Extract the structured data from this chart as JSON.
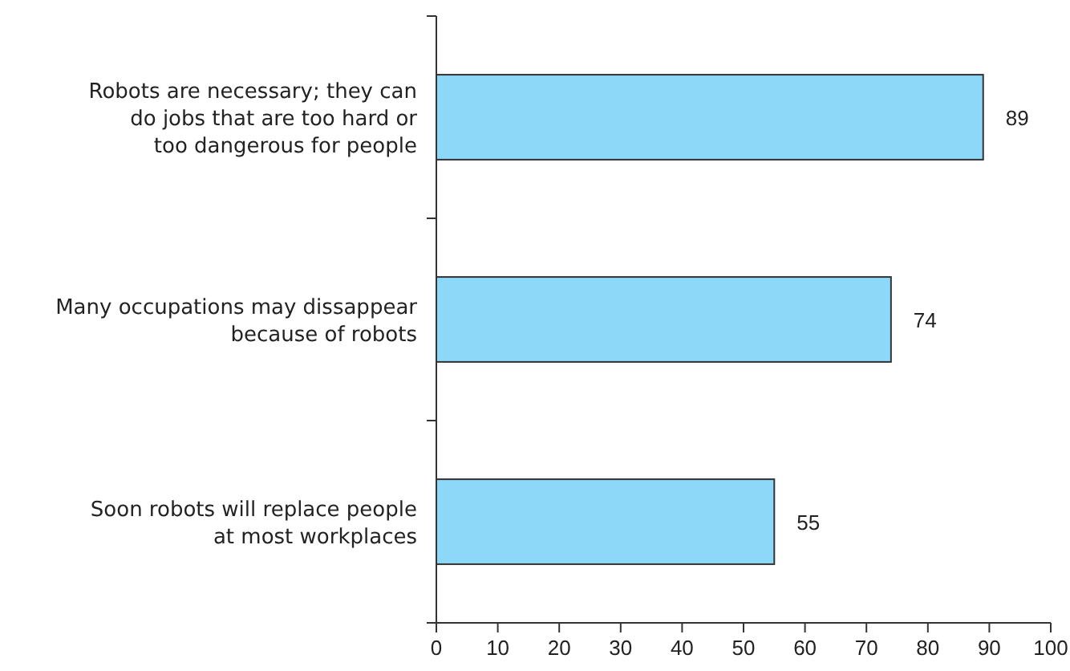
{
  "chart_data": {
    "type": "bar",
    "orientation": "horizontal",
    "categories": [
      "Robots are necessary; they can do jobs that are too hard or too dangerous for people",
      "Many occupations may dissappear because of robots",
      "Soon robots will replace people at most workplaces"
    ],
    "values": [
      89,
      74,
      55
    ],
    "color": "#8dd8f8",
    "xlim": [
      0,
      100
    ],
    "xticks": [
      0,
      10,
      20,
      30,
      40,
      50,
      60,
      70,
      80,
      90,
      100
    ],
    "data_labels": true,
    "grid": false
  }
}
